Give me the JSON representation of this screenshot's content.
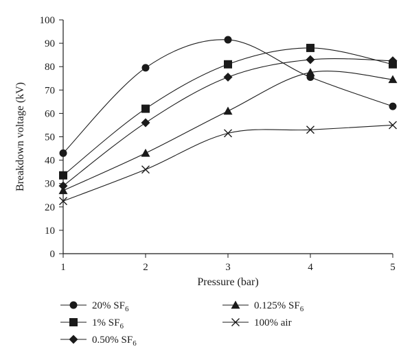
{
  "chart_data": {
    "type": "line",
    "xlabel": "Pressure (bar)",
    "ylabel": "Breakdown voltage (kV)",
    "x": [
      1,
      2,
      3,
      4,
      5
    ],
    "xlim": [
      1,
      5
    ],
    "ylim": [
      0,
      100
    ],
    "x_ticks": [
      "1",
      "2",
      "3",
      "4",
      "5"
    ],
    "y_ticks": [
      "0",
      "10",
      "20",
      "30",
      "40",
      "50",
      "60",
      "70",
      "80",
      "90",
      "100"
    ],
    "grid": false,
    "legend_position": "bottom",
    "series": [
      {
        "label_main": "20% SF",
        "label_sub": "6",
        "marker": "circle",
        "values": [
          43,
          79.5,
          91.5,
          75.5,
          63
        ]
      },
      {
        "label_main": "1% SF",
        "label_sub": "6",
        "marker": "square",
        "values": [
          33.5,
          62,
          81,
          88,
          81
        ]
      },
      {
        "label_main": "0.50% SF",
        "label_sub": "6",
        "marker": "diamond",
        "values": [
          29,
          56,
          75.5,
          83,
          82.5
        ]
      },
      {
        "label_main": "0.125% SF",
        "label_sub": "6",
        "marker": "triangle",
        "values": [
          27,
          43,
          61,
          77.5,
          74.5
        ]
      },
      {
        "label_main": "100% air",
        "label_sub": "",
        "marker": "cross",
        "values": [
          22.5,
          36,
          51.5,
          53,
          55
        ]
      }
    ]
  }
}
